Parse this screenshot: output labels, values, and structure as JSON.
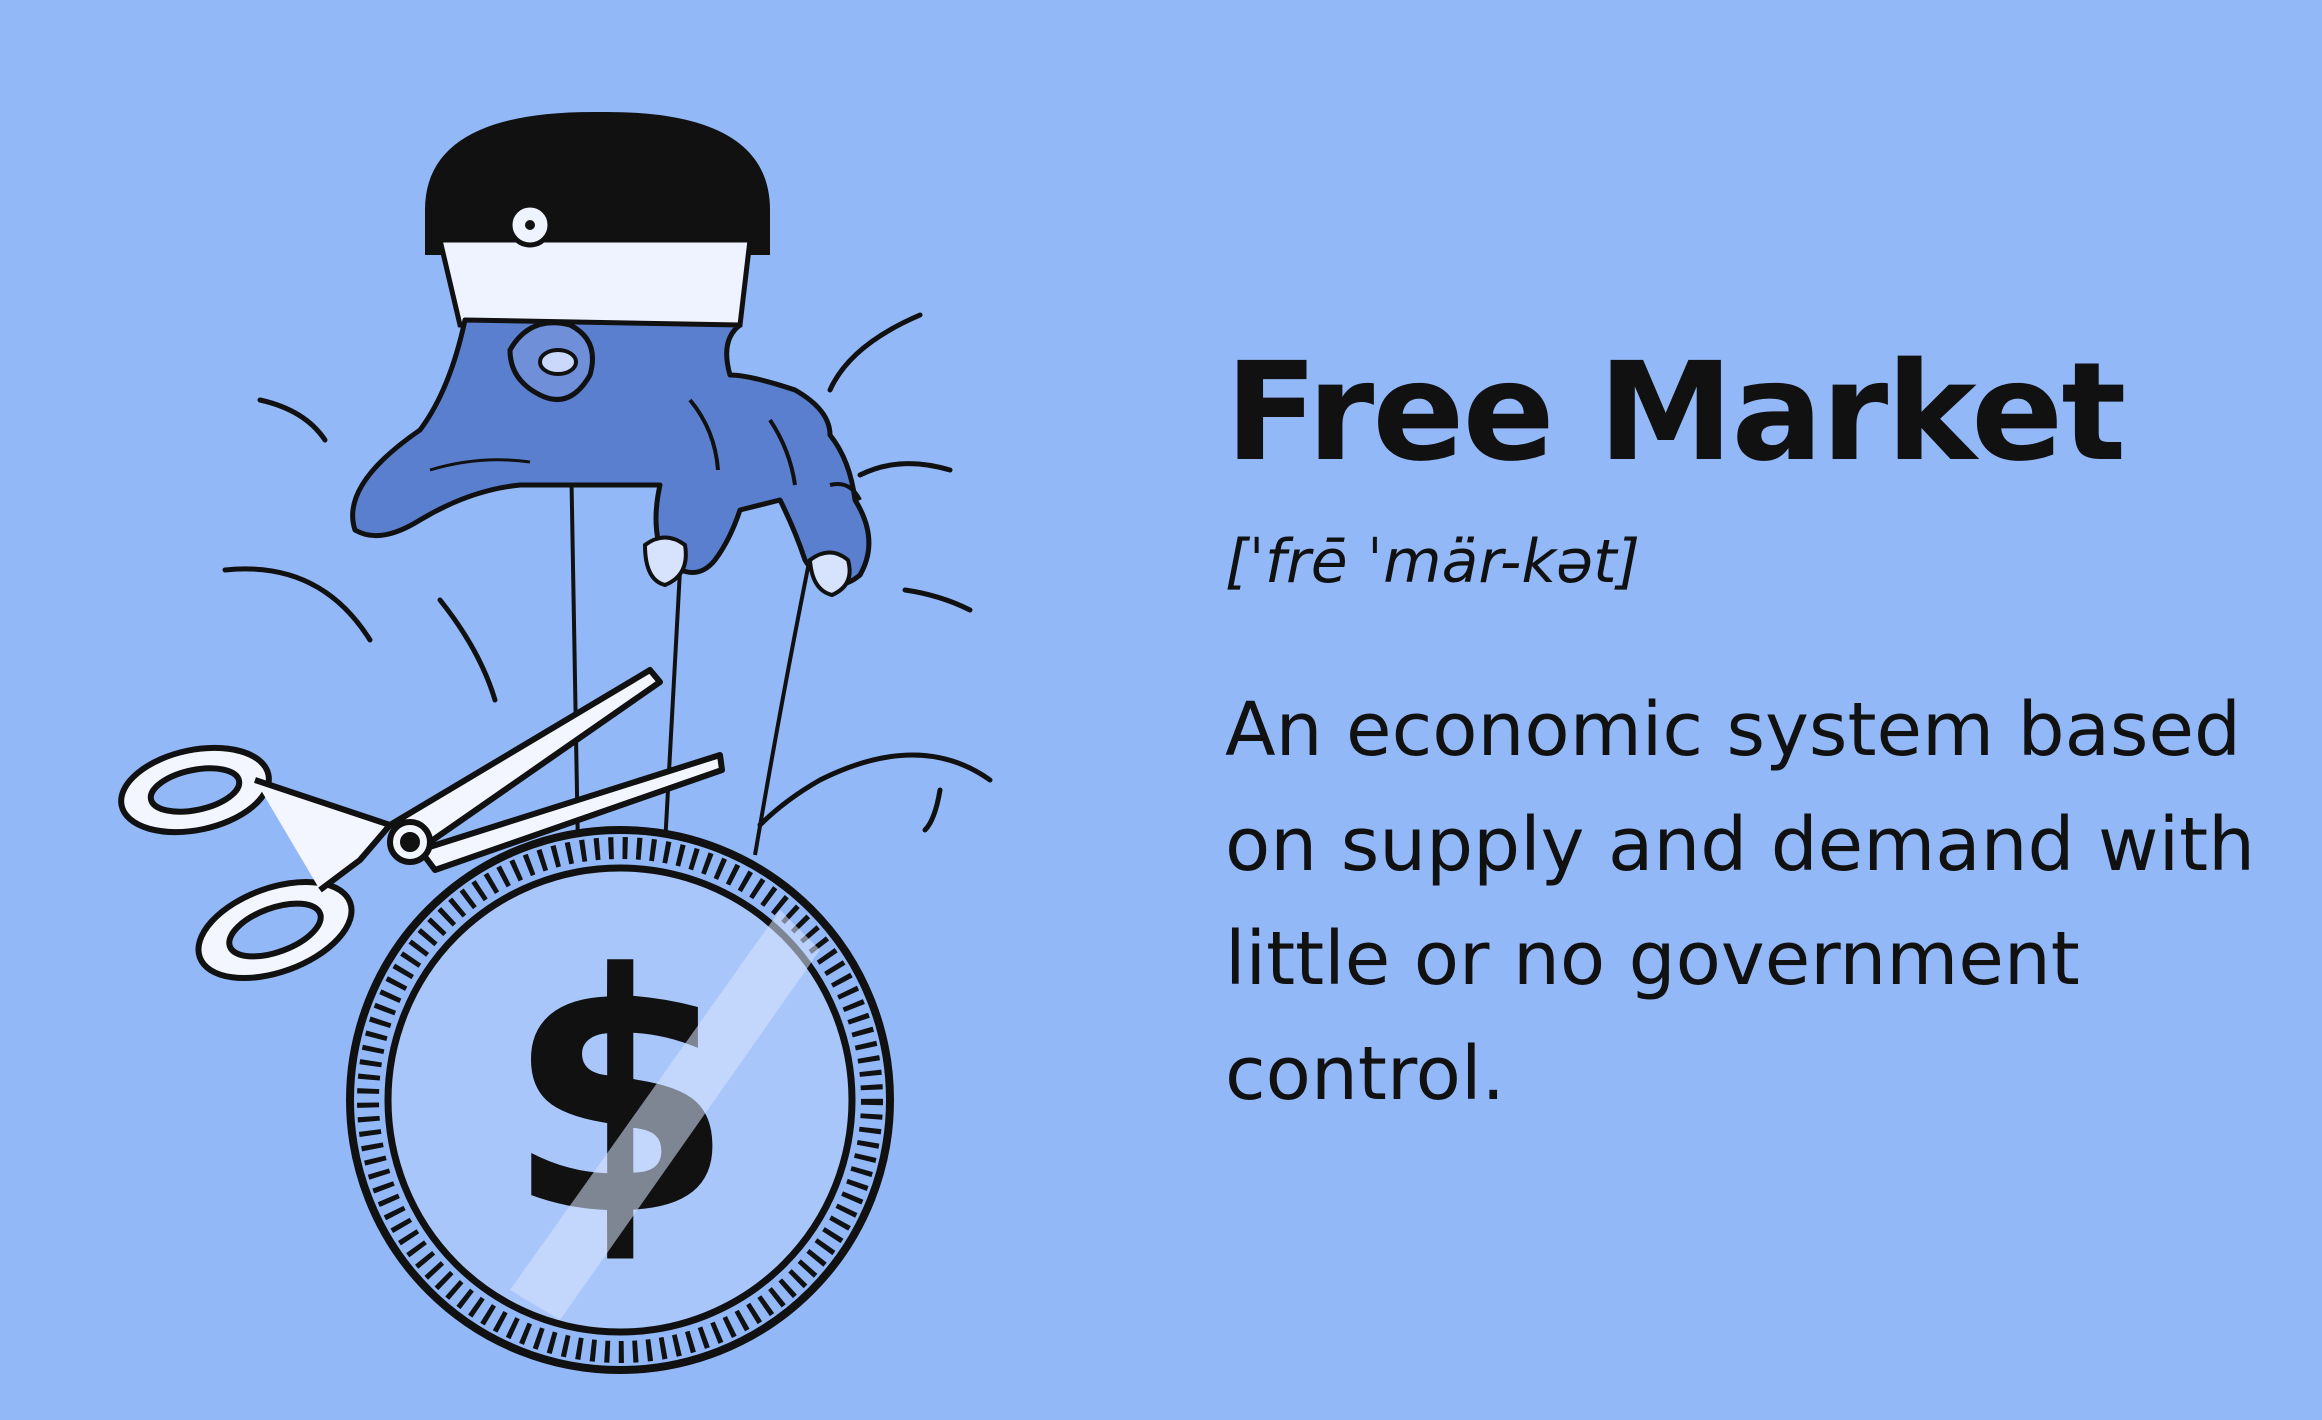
{
  "card": {
    "term": "Free Market",
    "pronunciation": "[ˈfrē ˈmär-kət]",
    "definition": "An economic system based on supply and demand with little or no government control."
  },
  "illustration": {
    "icons": [
      "hand-icon",
      "puppet-strings-icon",
      "scissors-icon",
      "dollar-coin-icon",
      "motion-lines-icon"
    ]
  },
  "colors": {
    "background": "#93b8f8",
    "hand": "#5b7fcf",
    "ink": "#111111",
    "coin_face": "#a9c6fb"
  }
}
